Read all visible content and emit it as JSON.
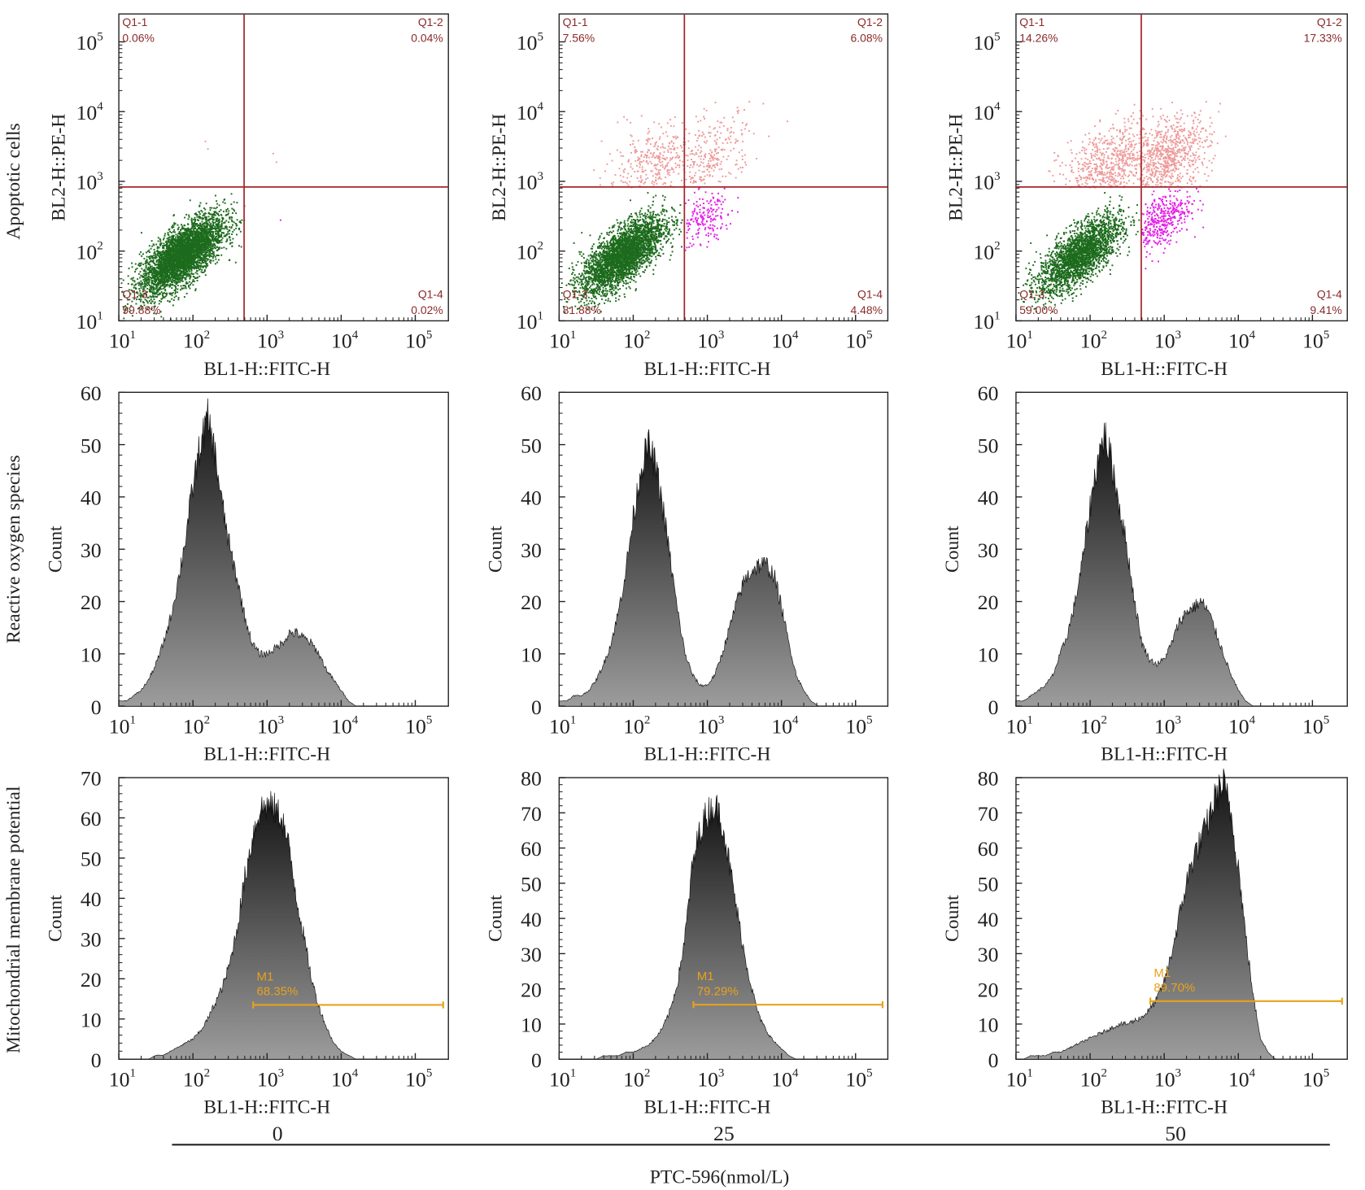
{
  "row_labels": [
    "Apoptotic cells",
    "Reactive oxygen species",
    "Mitochondrial membrane potential"
  ],
  "concentrations": [
    "0",
    "25",
    "50"
  ],
  "treatment_label": "PTC-596(nmol/L)",
  "colors": {
    "quadrant_line": "#a3262a",
    "quadrant_text": "#8b2a2a",
    "live_cells": "#1d6b1d",
    "late_apoptotic": "#ee9a9a",
    "early_apoptotic": "#e21ee6",
    "histogram_top": "#111111",
    "histogram_bottom": "#9c9c9c",
    "marker": "#e8a21c"
  },
  "chart_data": [
    {
      "type": "scatter",
      "row": 0,
      "col": 0,
      "xlabel": "BL1-H::FITC-H",
      "ylabel": "BL2-H::PE-H",
      "xscale": "log",
      "yscale": "log",
      "xlim": [
        10,
        280000
      ],
      "ylim": [
        10,
        250000
      ],
      "xticks": [
        1,
        2,
        3,
        4,
        5
      ],
      "yticks": [
        1,
        2,
        3,
        4,
        5
      ],
      "quadrant_gate": {
        "x": 490,
        "y": 830
      },
      "quadrants": [
        {
          "name": "Q1-1",
          "percent": "0.06%"
        },
        {
          "name": "Q1-2",
          "percent": "0.04%"
        },
        {
          "name": "Q1-3",
          "percent": "99.88%"
        },
        {
          "name": "Q1-4",
          "percent": "0.02%"
        }
      ]
    },
    {
      "type": "scatter",
      "row": 0,
      "col": 1,
      "xlabel": "BL1-H::FITC-H",
      "ylabel": "BL2-H::PE-H",
      "xscale": "log",
      "yscale": "log",
      "xlim": [
        10,
        280000
      ],
      "ylim": [
        10,
        250000
      ],
      "xticks": [
        1,
        2,
        3,
        4,
        5
      ],
      "yticks": [
        1,
        2,
        3,
        4,
        5
      ],
      "quadrant_gate": {
        "x": 490,
        "y": 830
      },
      "quadrants": [
        {
          "name": "Q1-1",
          "percent": "7.56%"
        },
        {
          "name": "Q1-2",
          "percent": "6.08%"
        },
        {
          "name": "Q1-3",
          "percent": "81.88%"
        },
        {
          "name": "Q1-4",
          "percent": "4.48%"
        }
      ]
    },
    {
      "type": "scatter",
      "row": 0,
      "col": 2,
      "xlabel": "BL1-H::FITC-H",
      "ylabel": "BL2-H::PE-H",
      "xscale": "log",
      "yscale": "log",
      "xlim": [
        10,
        280000
      ],
      "ylim": [
        10,
        250000
      ],
      "xticks": [
        1,
        2,
        3,
        4,
        5
      ],
      "yticks": [
        1,
        2,
        3,
        4,
        5
      ],
      "quadrant_gate": {
        "x": 490,
        "y": 830
      },
      "quadrants": [
        {
          "name": "Q1-1",
          "percent": "14.26%"
        },
        {
          "name": "Q1-2",
          "percent": "17.33%"
        },
        {
          "name": "Q1-3",
          "percent": "59.00%"
        },
        {
          "name": "Q1-4",
          "percent": "9.41%"
        }
      ]
    },
    {
      "type": "area",
      "row": 1,
      "col": 0,
      "xlabel": "BL1-H::FITC-H",
      "ylabel": "Count",
      "xscale": "log",
      "xlim": [
        10,
        280000
      ],
      "ylim": [
        0,
        60
      ],
      "xticks": [
        1,
        2,
        3,
        4,
        5
      ],
      "yticks": [
        0,
        10,
        20,
        30,
        40,
        50,
        60
      ],
      "log10_x": [
        1.0,
        1.1,
        1.2,
        1.3,
        1.4,
        1.5,
        1.6,
        1.7,
        1.8,
        1.9,
        2.0,
        2.1,
        2.2,
        2.3,
        2.4,
        2.5,
        2.6,
        2.7,
        2.8,
        2.9,
        3.0,
        3.1,
        3.2,
        3.3,
        3.4,
        3.5,
        3.6,
        3.7,
        3.8,
        3.9,
        4.0,
        4.1,
        4.2,
        4.3,
        4.4,
        4.5,
        4.6
      ],
      "counts": [
        1,
        1,
        2,
        3,
        5,
        8,
        12,
        17,
        24,
        32,
        42,
        50,
        55,
        48,
        38,
        30,
        24,
        17,
        12,
        10,
        10,
        11,
        12,
        14,
        14,
        13,
        12,
        10,
        7,
        5,
        3,
        1,
        0,
        0,
        0,
        0,
        0
      ]
    },
    {
      "type": "area",
      "row": 1,
      "col": 1,
      "xlabel": "BL1-H::FITC-H",
      "ylabel": "Count",
      "xscale": "log",
      "xlim": [
        10,
        280000
      ],
      "ylim": [
        0,
        60
      ],
      "xticks": [
        1,
        2,
        3,
        4,
        5
      ],
      "yticks": [
        0,
        10,
        20,
        30,
        40,
        50,
        60
      ],
      "log10_x": [
        1.0,
        1.1,
        1.2,
        1.3,
        1.4,
        1.5,
        1.6,
        1.7,
        1.8,
        1.9,
        2.0,
        2.1,
        2.2,
        2.3,
        2.4,
        2.5,
        2.6,
        2.7,
        2.8,
        2.9,
        3.0,
        3.1,
        3.2,
        3.3,
        3.4,
        3.5,
        3.6,
        3.7,
        3.8,
        3.9,
        4.0,
        4.1,
        4.2,
        4.3,
        4.4,
        4.5,
        4.6
      ],
      "counts": [
        1,
        1,
        2,
        2,
        3,
        5,
        8,
        12,
        18,
        26,
        36,
        45,
        50,
        46,
        38,
        28,
        18,
        10,
        6,
        4,
        4,
        6,
        10,
        15,
        20,
        24,
        26,
        27,
        27,
        25,
        19,
        12,
        6,
        3,
        1,
        0,
        0
      ]
    },
    {
      "type": "area",
      "row": 1,
      "col": 2,
      "xlabel": "BL1-H::FITC-H",
      "ylabel": "Count",
      "xscale": "log",
      "xlim": [
        10,
        280000
      ],
      "ylim": [
        0,
        60
      ],
      "xticks": [
        1,
        2,
        3,
        4,
        5
      ],
      "yticks": [
        0,
        10,
        20,
        30,
        40,
        50,
        60
      ],
      "log10_x": [
        1.0,
        1.1,
        1.2,
        1.3,
        1.4,
        1.5,
        1.6,
        1.7,
        1.8,
        1.9,
        2.0,
        2.1,
        2.2,
        2.3,
        2.4,
        2.5,
        2.6,
        2.7,
        2.8,
        2.9,
        3.0,
        3.1,
        3.2,
        3.3,
        3.4,
        3.5,
        3.6,
        3.7,
        3.8,
        3.9,
        4.0,
        4.1,
        4.2,
        4.3,
        4.4,
        4.5,
        4.6
      ],
      "counts": [
        1,
        1,
        2,
        3,
        4,
        6,
        10,
        14,
        20,
        28,
        38,
        47,
        52,
        46,
        38,
        30,
        20,
        12,
        9,
        8,
        9,
        12,
        16,
        18,
        19,
        20,
        18,
        14,
        10,
        6,
        3,
        1,
        0,
        0,
        0,
        0,
        0
      ]
    },
    {
      "type": "area",
      "row": 2,
      "col": 0,
      "xlabel": "BL1-H::FITC-H",
      "ylabel": "Count",
      "xscale": "log",
      "xlim": [
        10,
        280000
      ],
      "ylim": [
        0,
        70
      ],
      "xticks": [
        1,
        2,
        3,
        4,
        5
      ],
      "yticks": [
        0,
        10,
        20,
        30,
        40,
        50,
        60,
        70
      ],
      "log10_x": [
        1.0,
        1.1,
        1.2,
        1.3,
        1.4,
        1.5,
        1.6,
        1.7,
        1.8,
        1.9,
        2.0,
        2.1,
        2.2,
        2.3,
        2.4,
        2.5,
        2.6,
        2.7,
        2.8,
        2.9,
        3.0,
        3.1,
        3.2,
        3.3,
        3.4,
        3.5,
        3.6,
        3.7,
        3.8,
        3.9,
        4.0,
        4.1,
        4.2,
        4.3,
        4.4,
        4.5,
        4.6
      ],
      "counts": [
        0,
        0,
        0,
        0,
        0,
        1,
        1,
        2,
        3,
        4,
        5,
        7,
        10,
        14,
        18,
        24,
        33,
        45,
        55,
        62,
        63,
        62,
        60,
        52,
        40,
        30,
        20,
        13,
        8,
        4,
        2,
        1,
        0,
        0,
        0,
        0,
        0
      ],
      "marker": {
        "label": "M1",
        "percent": "68.35%",
        "range": [
          650,
          280000
        ],
        "level": 13.5
      }
    },
    {
      "type": "area",
      "row": 2,
      "col": 1,
      "xlabel": "BL1-H::FITC-H",
      "ylabel": "Count",
      "xscale": "log",
      "xlim": [
        10,
        280000
      ],
      "ylim": [
        0,
        80
      ],
      "xticks": [
        1,
        2,
        3,
        4,
        5
      ],
      "yticks": [
        0,
        10,
        20,
        30,
        40,
        50,
        60,
        70,
        80
      ],
      "log10_x": [
        1.0,
        1.1,
        1.2,
        1.3,
        1.4,
        1.5,
        1.6,
        1.7,
        1.8,
        1.9,
        2.0,
        2.1,
        2.2,
        2.3,
        2.4,
        2.5,
        2.6,
        2.7,
        2.8,
        2.9,
        3.0,
        3.1,
        3.2,
        3.3,
        3.4,
        3.5,
        3.6,
        3.7,
        3.8,
        3.9,
        4.0,
        4.1,
        4.2,
        4.3,
        4.4,
        4.5,
        4.6
      ],
      "counts": [
        0,
        0,
        0,
        0,
        0,
        0,
        1,
        1,
        1,
        2,
        2,
        3,
        4,
        6,
        9,
        14,
        22,
        35,
        55,
        65,
        70,
        72,
        68,
        55,
        42,
        30,
        20,
        12,
        8,
        5,
        3,
        1,
        0,
        0,
        0,
        0,
        0
      ],
      "marker": {
        "label": "M1",
        "percent": "79.29%",
        "range": [
          650,
          280000
        ],
        "level": 15.5
      }
    },
    {
      "type": "area",
      "row": 2,
      "col": 2,
      "xlabel": "BL1-H::FITC-H",
      "ylabel": "Count",
      "xscale": "log",
      "xlim": [
        10,
        280000
      ],
      "ylim": [
        0,
        80
      ],
      "xticks": [
        1,
        2,
        3,
        4,
        5
      ],
      "yticks": [
        0,
        10,
        20,
        30,
        40,
        50,
        60,
        70,
        80
      ],
      "log10_x": [
        1.0,
        1.1,
        1.2,
        1.3,
        1.4,
        1.5,
        1.6,
        1.7,
        1.8,
        1.9,
        2.0,
        2.1,
        2.2,
        2.3,
        2.4,
        2.5,
        2.6,
        2.7,
        2.8,
        2.9,
        3.0,
        3.1,
        3.2,
        3.3,
        3.4,
        3.5,
        3.6,
        3.7,
        3.8,
        3.9,
        4.0,
        4.1,
        4.2,
        4.3,
        4.4,
        4.5,
        4.6
      ],
      "counts": [
        0,
        0,
        1,
        1,
        1,
        2,
        2,
        3,
        4,
        5,
        6,
        7,
        8,
        9,
        10,
        10,
        11,
        12,
        14,
        17,
        22,
        30,
        40,
        50,
        58,
        62,
        68,
        75,
        78,
        70,
        55,
        35,
        18,
        6,
        2,
        0,
        0
      ],
      "marker": {
        "label": "M1",
        "percent": "89.70%",
        "range": [
          650,
          280000
        ],
        "level": 16.5
      }
    }
  ]
}
